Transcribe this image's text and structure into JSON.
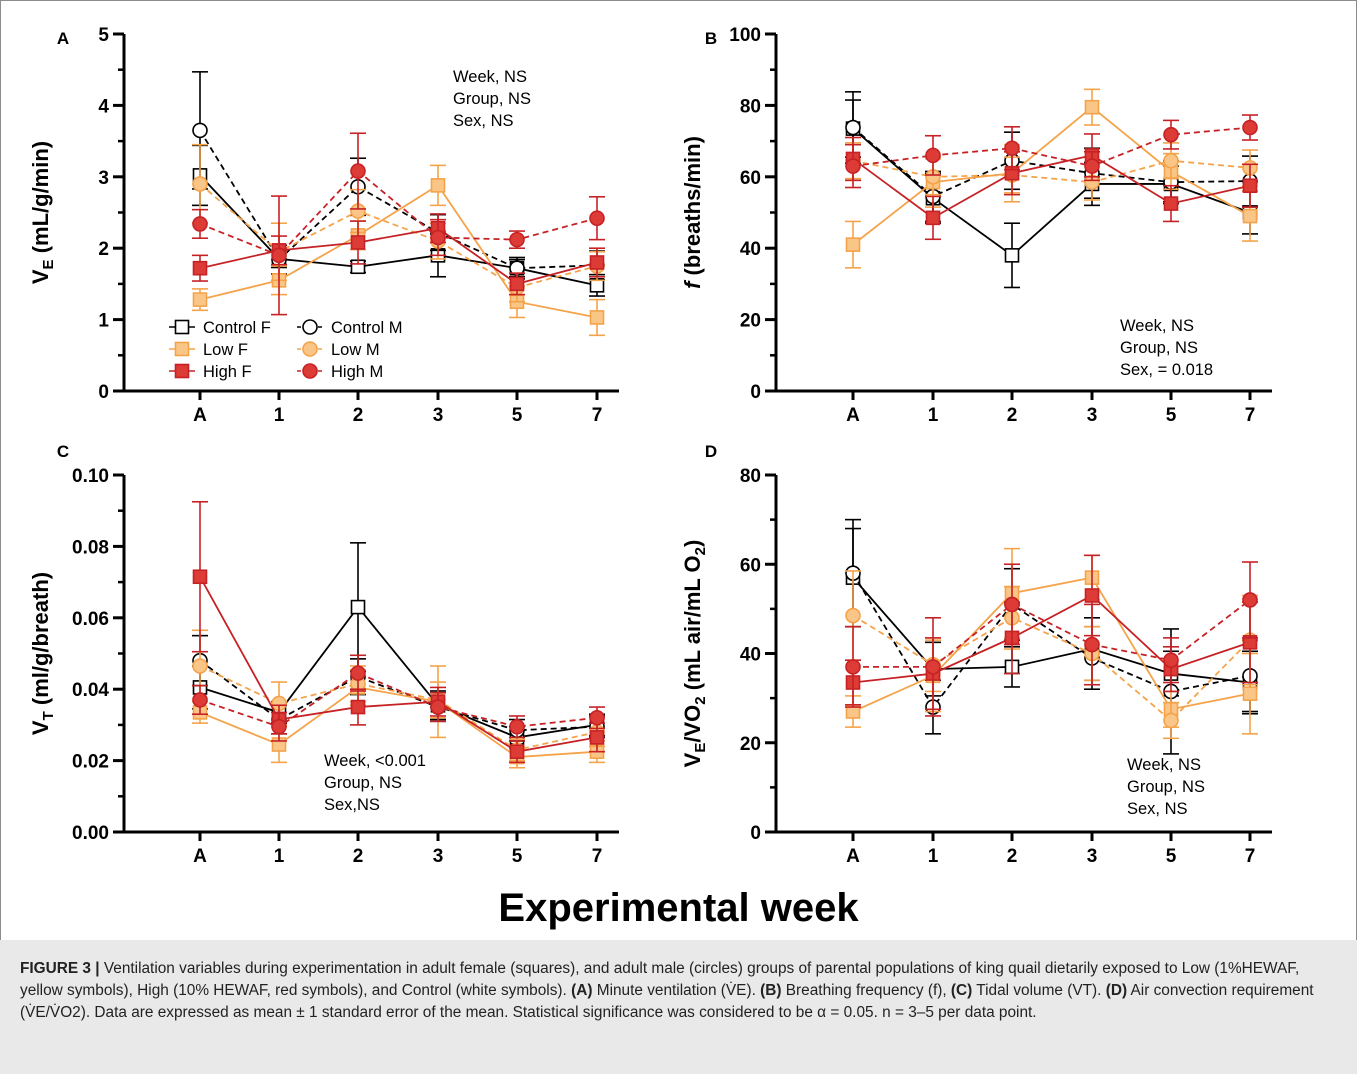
{
  "colors": {
    "control": "#000000",
    "low_stroke": "#f5a34a",
    "low_fill": "#f9c687",
    "high_stroke": "#c62226",
    "high_fill": "#dd3b35",
    "caption_bg": "#e9e9e9"
  },
  "shared_x_title": "Experimental week",
  "chart_data": [
    {
      "panel": "A",
      "type": "line",
      "categories": [
        "A",
        "1",
        "2",
        "3",
        "5",
        "7"
      ],
      "ylabel_main": "V",
      "ylabel_sub": "E",
      "ylabel_rest": " (mL/g/min)",
      "ylim": [
        0,
        5
      ],
      "yticks": [
        0,
        1,
        2,
        3,
        4,
        5
      ],
      "yticklabels": [
        "0",
        "1",
        "2",
        "3",
        "4",
        "5"
      ],
      "stats": [
        "Week, NS",
        "Group, NS",
        "Sex, NS"
      ],
      "legend": [
        {
          "label": "Control F",
          "marker": "square",
          "style": "control"
        },
        {
          "label": "Control M",
          "marker": "circle",
          "style": "control"
        },
        {
          "label": "Low F",
          "marker": "square",
          "style": "low"
        },
        {
          "label": "Low M",
          "marker": "circle",
          "style": "low"
        },
        {
          "label": "High F",
          "marker": "square",
          "style": "high"
        },
        {
          "label": "High M",
          "marker": "circle",
          "style": "high"
        }
      ],
      "series": [
        {
          "name": "Control F",
          "marker": "square",
          "style": "control",
          "dashed": false,
          "values": [
            3.02,
            1.85,
            1.74,
            1.9,
            1.72,
            1.48
          ],
          "err": [
            0.42,
            0.12,
            0.08,
            0.3,
            0.12,
            0.15
          ]
        },
        {
          "name": "Control M",
          "marker": "circle",
          "style": "control",
          "dashed": true,
          "values": [
            3.65,
            1.84,
            2.86,
            2.22,
            1.72,
            1.76
          ],
          "err": [
            0.82,
            0.2,
            0.4,
            0.25,
            0.15,
            0.2
          ]
        },
        {
          "name": "Low F",
          "marker": "square",
          "style": "low",
          "dashed": false,
          "values": [
            1.28,
            1.55,
            2.18,
            2.88,
            1.25,
            1.03
          ],
          "err": [
            0.15,
            0.2,
            0.2,
            0.28,
            0.22,
            0.25
          ]
        },
        {
          "name": "Low M",
          "marker": "circle",
          "style": "low",
          "dashed": true,
          "values": [
            2.9,
            1.95,
            2.52,
            2.1,
            1.45,
            1.75
          ],
          "err": [
            0.55,
            0.4,
            0.3,
            0.25,
            0.2,
            0.2
          ]
        },
        {
          "name": "High F",
          "marker": "square",
          "style": "high",
          "dashed": false,
          "values": [
            1.72,
            1.97,
            2.08,
            2.28,
            1.5,
            1.8
          ],
          "err": [
            0.18,
            0.2,
            0.3,
            0.2,
            0.15,
            0.2
          ]
        },
        {
          "name": "High M",
          "marker": "circle",
          "style": "high",
          "dashed": true,
          "values": [
            2.34,
            1.9,
            3.08,
            2.15,
            2.12,
            2.42
          ],
          "err": [
            0.2,
            0.83,
            0.53,
            0.25,
            0.12,
            0.3
          ]
        }
      ]
    },
    {
      "panel": "B",
      "type": "line",
      "categories": [
        "A",
        "1",
        "2",
        "3",
        "5",
        "7"
      ],
      "ylabel_main": "f",
      "ylabel_sub": "",
      "ylabel_rest": " (breaths/min)",
      "ylim": [
        0,
        100
      ],
      "yticks": [
        0,
        20,
        40,
        60,
        80,
        100
      ],
      "yticklabels": [
        "0",
        "20",
        "40",
        "60",
        "80",
        "100"
      ],
      "stats": [
        "Week, NS",
        "Group, NS",
        "Sex, = 0.018"
      ],
      "series": [
        {
          "name": "Control F",
          "marker": "square",
          "style": "control",
          "dashed": false,
          "values": [
            73.5,
            54,
            38,
            58,
            58,
            50
          ],
          "err": [
            8,
            7,
            9,
            6,
            5,
            6
          ]
        },
        {
          "name": "Control M",
          "marker": "circle",
          "style": "control",
          "dashed": true,
          "values": [
            73.8,
            54.5,
            64.5,
            61,
            58.5,
            58.8
          ],
          "err": [
            10,
            7,
            8,
            7,
            6,
            7
          ]
        },
        {
          "name": "Low F",
          "marker": "square",
          "style": "low",
          "dashed": false,
          "values": [
            41,
            58.5,
            61,
            79.5,
            61.5,
            49
          ],
          "err": [
            6.5,
            7,
            8,
            5,
            5,
            7
          ]
        },
        {
          "name": "Low M",
          "marker": "circle",
          "style": "low",
          "dashed": true,
          "values": [
            64.5,
            60,
            60.5,
            58.5,
            64.5,
            62.5
          ],
          "err": [
            5,
            5,
            5,
            5,
            5,
            5
          ]
        },
        {
          "name": "High F",
          "marker": "square",
          "style": "high",
          "dashed": false,
          "values": [
            65,
            48.5,
            61,
            66,
            52.5,
            57.5
          ],
          "err": [
            6,
            6,
            6,
            6,
            5,
            6
          ]
        },
        {
          "name": "High M",
          "marker": "circle",
          "style": "high",
          "dashed": true,
          "values": [
            63,
            66,
            68,
            63,
            71.8,
            73.8
          ],
          "err": [
            6,
            5.5,
            6,
            4,
            4,
            3.5
          ]
        }
      ]
    },
    {
      "panel": "C",
      "type": "line",
      "categories": [
        "A",
        "1",
        "2",
        "3",
        "5",
        "7"
      ],
      "ylabel_main": "V",
      "ylabel_sub": "T",
      "ylabel_rest": " (ml/g/breath)",
      "ylim": [
        0,
        0.1
      ],
      "yticks": [
        0,
        0.02,
        0.04,
        0.06,
        0.08,
        0.1
      ],
      "yticklabels": [
        "0.00",
        "0.02",
        "0.04",
        "0.06",
        "0.08",
        "0.10"
      ],
      "stats": [
        "Week, <0.001",
        "Group, NS",
        "Sex,NS"
      ],
      "series": [
        {
          "name": "Control F",
          "marker": "square",
          "style": "control",
          "dashed": false,
          "values": [
            0.0405,
            0.0335,
            0.063,
            0.0355,
            0.0265,
            0.03
          ],
          "err": [
            0.006,
            0.003,
            0.018,
            0.004,
            0.003,
            0.003
          ]
        },
        {
          "name": "Control M",
          "marker": "circle",
          "style": "control",
          "dashed": true,
          "values": [
            0.048,
            0.0315,
            0.0435,
            0.035,
            0.0285,
            0.0295
          ],
          "err": [
            0.007,
            0.004,
            0.005,
            0.004,
            0.003,
            0.003
          ]
        },
        {
          "name": "Low F",
          "marker": "square",
          "style": "low",
          "dashed": false,
          "values": [
            0.0335,
            0.0245,
            0.0405,
            0.0365,
            0.021,
            0.0225
          ],
          "err": [
            0.003,
            0.005,
            0.005,
            0.01,
            0.003,
            0.003
          ]
        },
        {
          "name": "Low M",
          "marker": "circle",
          "style": "low",
          "dashed": true,
          "values": [
            0.0465,
            0.036,
            0.0415,
            0.037,
            0.023,
            0.028
          ],
          "err": [
            0.01,
            0.006,
            0.005,
            0.005,
            0.003,
            0.004
          ]
        },
        {
          "name": "High F",
          "marker": "square",
          "style": "high",
          "dashed": false,
          "values": [
            0.0715,
            0.0315,
            0.035,
            0.0365,
            0.0225,
            0.0265
          ],
          "err": [
            0.021,
            0.004,
            0.005,
            0.004,
            0.003,
            0.004
          ]
        },
        {
          "name": "High M",
          "marker": "circle",
          "style": "high",
          "dashed": true,
          "values": [
            0.037,
            0.0295,
            0.0445,
            0.035,
            0.0295,
            0.032
          ],
          "err": [
            0.004,
            0.004,
            0.005,
            0.004,
            0.003,
            0.003
          ]
        }
      ]
    },
    {
      "panel": "D",
      "type": "line",
      "categories": [
        "A",
        "1",
        "2",
        "3",
        "5",
        "7"
      ],
      "ylabel_main": "V",
      "ylabel_sub": "E",
      "ylabel_rest": "/VO",
      "ylabel_sub2": "2",
      "ylabel_rest2": " (mL air/mL O",
      "ylabel_sub3": "2",
      "ylabel_end": ")",
      "ylim": [
        0,
        80
      ],
      "yticks": [
        0,
        20,
        40,
        60,
        80
      ],
      "yticklabels": [
        "0",
        "20",
        "40",
        "60",
        "80"
      ],
      "stats": [
        "Week, NS",
        "Group, NS",
        "Sex, NS"
      ],
      "series": [
        {
          "name": "Control F",
          "marker": "square",
          "style": "control",
          "dashed": false,
          "values": [
            57,
            36.5,
            37,
            41,
            35.5,
            33.5
          ],
          "err": [
            11,
            6,
            4.5,
            7,
            5,
            7
          ]
        },
        {
          "name": "Control M",
          "marker": "circle",
          "style": "control",
          "dashed": true,
          "values": [
            58,
            28,
            51,
            39,
            31.5,
            35
          ],
          "err": [
            12,
            6,
            8,
            7,
            14,
            8
          ]
        },
        {
          "name": "Low F",
          "marker": "square",
          "style": "low",
          "dashed": false,
          "values": [
            27,
            35,
            53.5,
            57,
            27.5,
            31
          ],
          "err": [
            3.5,
            8,
            10,
            5,
            4,
            9
          ]
        },
        {
          "name": "Low M",
          "marker": "circle",
          "style": "low",
          "dashed": true,
          "values": [
            48.5,
            37.5,
            48,
            40,
            25,
            43
          ],
          "err": [
            10,
            6,
            7,
            6,
            4,
            10
          ]
        },
        {
          "name": "High F",
          "marker": "square",
          "style": "high",
          "dashed": false,
          "values": [
            33.5,
            35.5,
            43.5,
            53,
            36.5,
            42.5
          ],
          "err": [
            5,
            8,
            8,
            9,
            5,
            9
          ]
        },
        {
          "name": "High M",
          "marker": "circle",
          "style": "high",
          "dashed": true,
          "values": [
            37,
            37,
            51,
            42,
            38.5,
            52
          ],
          "err": [
            9,
            11,
            9,
            9,
            5,
            8.5
          ]
        }
      ]
    }
  ],
  "caption": {
    "label": "FIGURE 3 |",
    "text1": " Ventilation variables during experimentation in adult female (squares), and adult male (circles) groups of parental populations of king quail dietarily exposed to Low (1%HEWAF, yellow symbols), High (10% HEWAF, red symbols), and Control (white symbols). ",
    "a_label": "(A)",
    "a_text": " Minute ventilation (V̇E). ",
    "b_label": "(B)",
    "b_text": " Breathing frequency (f), ",
    "c_label": "(C)",
    "c_text": " Tidal volume (VT). ",
    "d_label": "(D)",
    "d_text": " Air convection requirement (V̇E/V̇O2). Data are expressed as mean ± 1 standard error of the mean. Statistical significance was considered to be α = 0.05. n = 3–5 per data point."
  }
}
